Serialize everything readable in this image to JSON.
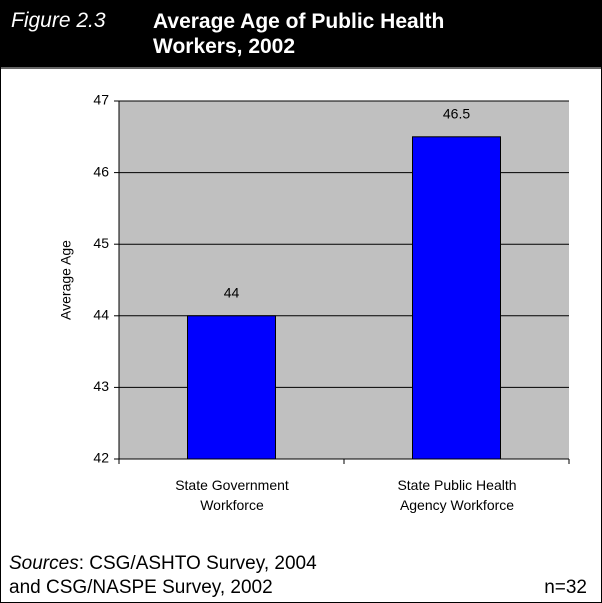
{
  "chart_data": {
    "type": "bar",
    "figure_label": "Figure 2.3",
    "title": "Average Age of Public Health Workers, 2002",
    "y_axis_label": "Average Age",
    "categories": [
      "State Government Workforce",
      "State Public Health Agency Workforce"
    ],
    "values": [
      44,
      46.5
    ],
    "color": "#0000ff",
    "ylim": [
      42,
      47
    ],
    "yticks": [
      42,
      43,
      44,
      45,
      46,
      47
    ],
    "grid": true,
    "sources_label": "Sources",
    "sources_text": ": CSG/ASHTO Survey, 2004",
    "sources_line2": "and CSG/NASPE Survey, 2002",
    "note": "n=32"
  }
}
